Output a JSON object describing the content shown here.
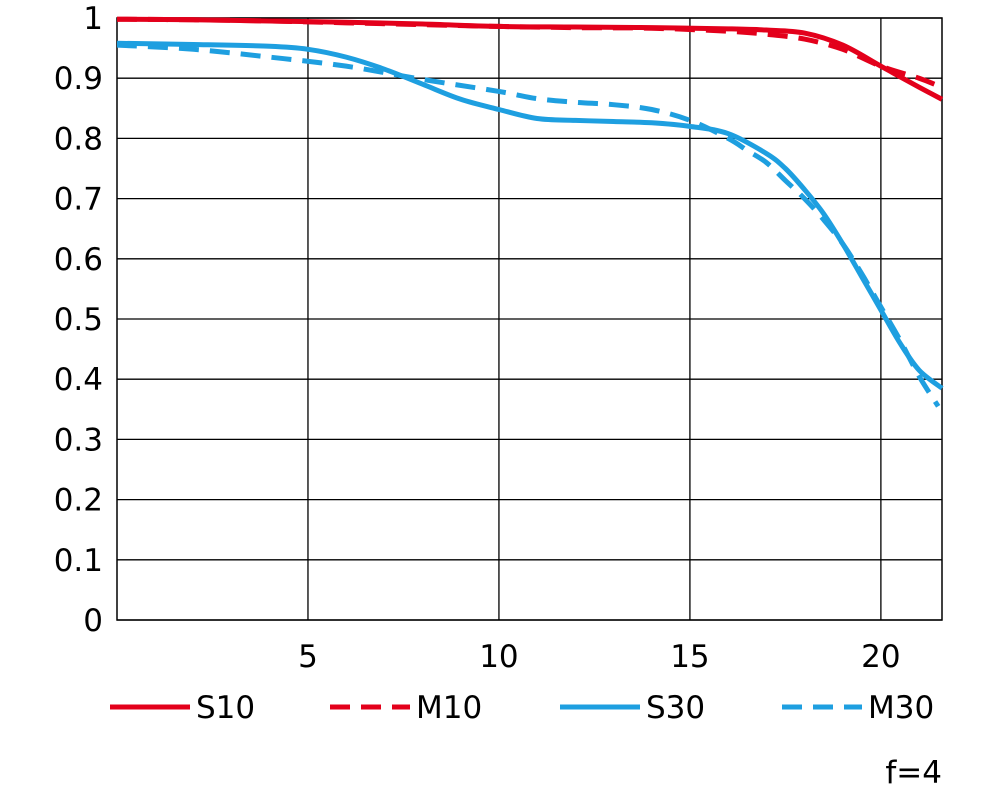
{
  "chart_data": {
    "type": "line",
    "xlabel": "",
    "ylabel": "",
    "xlim": [
      0,
      21.6
    ],
    "ylim": [
      0,
      1
    ],
    "x_ticks": [
      "5",
      "10",
      "15",
      "20"
    ],
    "y_ticks": [
      "0",
      "0.1",
      "0.2",
      "0.3",
      "0.4",
      "0.5",
      "0.6",
      "0.7",
      "0.8",
      "0.9",
      "1"
    ],
    "grid": true,
    "legend_position": "bottom",
    "note": "f=4",
    "series": [
      {
        "name": "S10",
        "color": "#e3001b",
        "style": "solid",
        "x": [
          0,
          2,
          4,
          6,
          8,
          10,
          12,
          14,
          16,
          17,
          18,
          19,
          20,
          21,
          21.6
        ],
        "y": [
          0.998,
          0.997,
          0.995,
          0.993,
          0.99,
          0.986,
          0.985,
          0.984,
          0.982,
          0.98,
          0.975,
          0.955,
          0.92,
          0.885,
          0.865
        ]
      },
      {
        "name": "M10",
        "color": "#e3001b",
        "style": "dashed",
        "x": [
          0,
          2,
          4,
          6,
          8,
          10,
          12,
          14,
          16,
          17,
          18,
          19,
          20,
          21,
          21.4
        ],
        "y": [
          0.998,
          0.997,
          0.995,
          0.992,
          0.989,
          0.986,
          0.984,
          0.983,
          0.978,
          0.973,
          0.965,
          0.948,
          0.92,
          0.9,
          0.89
        ]
      },
      {
        "name": "S30",
        "color": "#1e9fe0",
        "style": "solid",
        "x": [
          0,
          2,
          4,
          5,
          6,
          7,
          8,
          9,
          10,
          11,
          12,
          13,
          14,
          15,
          16,
          17,
          17.5,
          18,
          18.5,
          19,
          19.5,
          20,
          20.5,
          21,
          21.6
        ],
        "y": [
          0.958,
          0.956,
          0.953,
          0.948,
          0.935,
          0.915,
          0.89,
          0.865,
          0.848,
          0.833,
          0.83,
          0.828,
          0.826,
          0.82,
          0.808,
          0.775,
          0.75,
          0.715,
          0.675,
          0.625,
          0.57,
          0.515,
          0.46,
          0.415,
          0.385
        ]
      },
      {
        "name": "M30",
        "color": "#1e9fe0",
        "style": "dashed",
        "x": [
          0,
          2,
          4,
          6,
          8,
          10,
          11,
          12,
          13,
          14,
          15,
          16,
          16.5,
          17,
          17.5,
          18,
          18.5,
          19,
          19.5,
          20,
          20.5,
          21,
          21.5
        ],
        "y": [
          0.955,
          0.948,
          0.935,
          0.92,
          0.898,
          0.878,
          0.866,
          0.86,
          0.856,
          0.848,
          0.83,
          0.8,
          0.78,
          0.76,
          0.73,
          0.7,
          0.665,
          0.625,
          0.575,
          0.52,
          0.465,
          0.405,
          0.355
        ]
      }
    ]
  }
}
